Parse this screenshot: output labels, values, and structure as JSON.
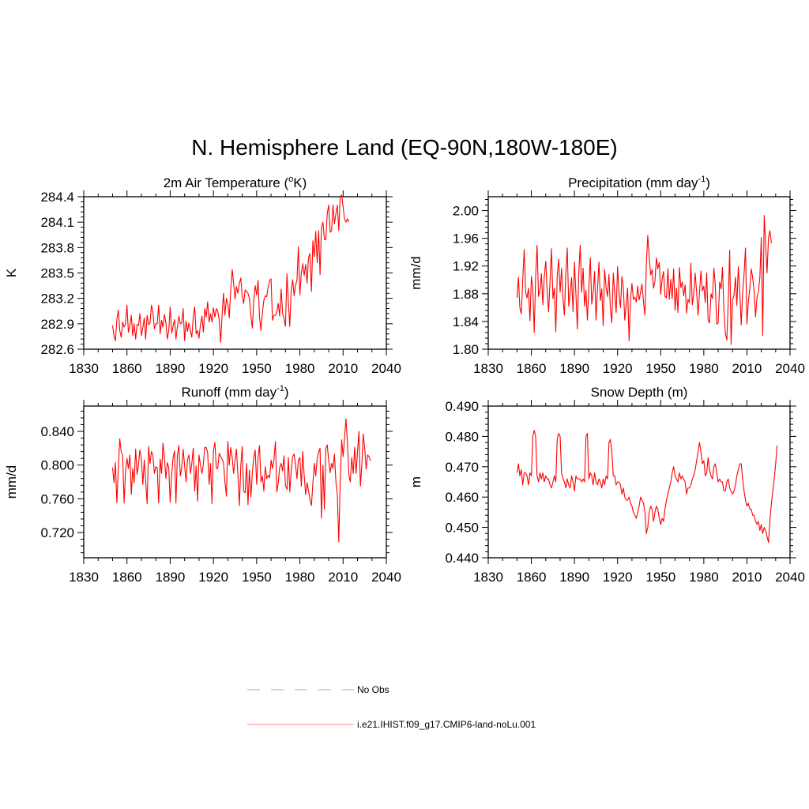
{
  "figure": {
    "title": "N. Hemisphere Land (EQ-90N,180W-180E)"
  },
  "chart_data": [
    {
      "type": "line",
      "title": "2m Air Temperature (",
      "title_sup": "o",
      "title_after": "K)",
      "ylabel": "K",
      "xlim": [
        1830,
        2040
      ],
      "ylim": [
        282.6,
        284.4
      ],
      "xticks": [
        "1830",
        "1860",
        "1890",
        "1920",
        "1950",
        "1980",
        "2010",
        "2040"
      ],
      "yticks": [
        "282.6",
        "282.9",
        "283.2",
        "283.5",
        "283.8",
        "284.1",
        "284.4"
      ],
      "series": [
        {
          "color": "#ff0000",
          "x_start": 1850,
          "values": [
            282.88,
            282.76,
            282.7,
            282.95,
            283.06,
            282.82,
            282.74,
            282.92,
            282.86,
            282.9,
            283.12,
            282.8,
            282.88,
            283.0,
            282.76,
            282.9,
            282.72,
            282.89,
            282.88,
            283.02,
            282.76,
            282.85,
            282.97,
            282.72,
            283.0,
            282.89,
            282.91,
            283.12,
            283.04,
            282.84,
            282.9,
            282.9,
            283.12,
            282.78,
            282.94,
            282.86,
            283.01,
            282.91,
            282.72,
            282.82,
            283.1,
            282.79,
            282.87,
            282.95,
            282.72,
            282.86,
            282.99,
            282.9,
            282.91,
            283.08,
            282.7,
            282.93,
            282.81,
            282.91,
            282.82,
            282.74,
            282.98,
            283.1,
            282.78,
            282.82,
            282.73,
            282.89,
            282.99,
            282.8,
            283.08,
            282.98,
            283.16,
            282.92,
            283.02,
            282.92,
            283.09,
            282.98,
            283.08,
            283.05,
            282.95,
            282.68,
            283.0,
            283.26,
            283.0,
            283.2,
            283.14,
            282.97,
            283.3,
            283.54,
            283.38,
            283.19,
            283.34,
            283.26,
            283.38,
            283.44,
            283.23,
            283.14,
            283.3,
            283.28,
            283.26,
            283.2,
            282.99,
            282.85,
            283.18,
            283.35,
            283.24,
            283.41,
            282.98,
            282.82,
            283.04,
            283.18,
            283.23,
            283.22,
            283.33,
            283.41,
            283.43,
            282.94,
            283.0,
            283.0,
            283.04,
            283.14,
            282.99,
            283.31,
            283.02,
            282.96,
            282.87,
            283.49,
            283.16,
            282.87,
            283.3,
            283.42,
            283.23,
            283.36,
            283.41,
            283.81,
            283.24,
            283.5,
            283.61,
            283.47,
            283.6,
            283.38,
            283.68,
            283.73,
            283.28,
            283.88,
            283.69,
            283.99,
            283.62,
            284.0,
            283.48,
            284.04,
            284.1,
            283.9,
            283.89,
            284.2,
            284.3,
            283.98,
            284.0,
            284.3,
            284.08,
            284.2,
            284.3,
            284.0,
            284.4,
            284.42,
            284.28,
            284.14,
            284.1,
            284.14,
            284.1
          ]
        }
      ]
    },
    {
      "type": "line",
      "title": "Precipitation (mm day",
      "title_sup": "-1",
      "title_after": ")",
      "ylabel": "mm/d",
      "xlim": [
        1830,
        2040
      ],
      "ylim": [
        1.8,
        2.02
      ],
      "xticks": [
        "1830",
        "1860",
        "1890",
        "1920",
        "1950",
        "1980",
        "2010",
        "2040"
      ],
      "yticks": [
        "1.80",
        "1.84",
        "1.88",
        "1.92",
        "1.96",
        "2.00"
      ],
      "series": [
        {
          "color": "#ff0000",
          "x_start": 1850,
          "values": [
            1.874,
            1.904,
            1.86,
            1.851,
            1.901,
            1.944,
            1.882,
            1.874,
            1.888,
            1.841,
            1.905,
            1.887,
            1.824,
            1.905,
            1.95,
            1.876,
            1.885,
            1.909,
            1.864,
            1.904,
            1.927,
            1.882,
            1.854,
            1.898,
            1.945,
            1.873,
            1.888,
            1.825,
            1.905,
            1.93,
            1.882,
            1.917,
            1.873,
            1.849,
            1.91,
            1.946,
            1.862,
            1.882,
            1.903,
            1.854,
            1.926,
            1.879,
            1.829,
            1.91,
            1.95,
            1.882,
            1.917,
            1.862,
            1.885,
            1.842,
            1.887,
            1.932,
            1.865,
            1.882,
            1.912,
            1.842,
            1.885,
            1.926,
            1.87,
            1.887,
            1.834,
            1.915,
            1.889,
            1.876,
            1.908,
            1.858,
            1.838,
            1.91,
            1.881,
            1.853,
            1.919,
            1.881,
            1.86,
            1.905,
            1.889,
            1.842,
            1.865,
            1.888,
            1.812,
            1.872,
            1.895,
            1.872,
            1.875,
            1.868,
            1.891,
            1.871,
            1.882,
            1.894,
            1.868,
            1.849,
            1.922,
            1.964,
            1.934,
            1.907,
            1.915,
            1.888,
            1.898,
            1.932,
            1.916,
            1.925,
            1.879,
            1.901,
            1.912,
            1.876,
            1.874,
            1.916,
            1.872,
            1.901,
            1.873,
            1.916,
            1.856,
            1.888,
            1.853,
            1.918,
            1.889,
            1.897,
            1.877,
            1.893,
            1.852,
            1.872,
            1.867,
            1.924,
            1.864,
            1.88,
            1.91,
            1.882,
            1.849,
            1.882,
            1.913,
            1.884,
            1.891,
            1.867,
            1.91,
            1.842,
            1.838,
            1.88,
            1.873,
            1.917,
            1.893,
            1.836,
            1.838,
            1.897,
            1.887,
            1.918,
            1.856,
            1.823,
            1.813,
            1.869,
            1.943,
            1.807,
            1.871,
            1.878,
            1.904,
            1.863,
            1.919,
            1.883,
            1.835,
            1.883,
            1.908,
            1.946,
            1.836,
            1.868,
            1.888,
            1.916,
            1.903,
            1.884,
            1.847,
            1.875,
            1.883,
            1.904,
            1.961,
            1.82,
            1.993,
            1.953,
            1.91,
            1.96,
            1.971,
            1.953
          ]
        }
      ]
    },
    {
      "type": "line",
      "title": "Runoff (mm day",
      "title_sup": "-1",
      "title_after": ")",
      "ylabel": "mm/d",
      "xlim": [
        1830,
        2040
      ],
      "ylim": [
        0.69,
        0.87
      ],
      "xticks": [
        "1830",
        "1860",
        "1890",
        "1920",
        "1950",
        "1980",
        "2010",
        "2040"
      ],
      "yticks": [
        "0.720",
        "0.760",
        "0.800",
        "0.840"
      ],
      "series": [
        {
          "color": "#ff0000",
          "x_start": 1850,
          "values": [
            0.797,
            0.779,
            0.803,
            0.755,
            0.797,
            0.831,
            0.816,
            0.812,
            0.755,
            0.793,
            0.808,
            0.796,
            0.812,
            0.765,
            0.796,
            0.779,
            0.819,
            0.789,
            0.801,
            0.818,
            0.807,
            0.777,
            0.806,
            0.781,
            0.754,
            0.822,
            0.802,
            0.816,
            0.812,
            0.79,
            0.798,
            0.797,
            0.755,
            0.807,
            0.79,
            0.826,
            0.809,
            0.784,
            0.803,
            0.797,
            0.756,
            0.789,
            0.809,
            0.817,
            0.755,
            0.811,
            0.823,
            0.787,
            0.797,
            0.819,
            0.799,
            0.78,
            0.806,
            0.812,
            0.79,
            0.802,
            0.82,
            0.769,
            0.799,
            0.757,
            0.812,
            0.8,
            0.79,
            0.801,
            0.821,
            0.821,
            0.815,
            0.777,
            0.802,
            0.754,
            0.816,
            0.827,
            0.796,
            0.796,
            0.814,
            0.81,
            0.807,
            0.803,
            0.78,
            0.763,
            0.828,
            0.8,
            0.821,
            0.809,
            0.79,
            0.806,
            0.819,
            0.789,
            0.752,
            0.799,
            0.822,
            0.769,
            0.767,
            0.802,
            0.753,
            0.794,
            0.762,
            0.791,
            0.809,
            0.818,
            0.777,
            0.81,
            0.823,
            0.78,
            0.787,
            0.769,
            0.798,
            0.784,
            0.788,
            0.785,
            0.806,
            0.796,
            0.806,
            0.828,
            0.768,
            0.779,
            0.797,
            0.802,
            0.793,
            0.811,
            0.776,
            0.771,
            0.809,
            0.768,
            0.793,
            0.81,
            0.813,
            0.8,
            0.784,
            0.806,
            0.809,
            0.775,
            0.816,
            0.788,
            0.765,
            0.779,
            0.77,
            0.759,
            0.752,
            0.778,
            0.802,
            0.787,
            0.808,
            0.815,
            0.82,
            0.737,
            0.8,
            0.748,
            0.82,
            0.824,
            0.806,
            0.791,
            0.802,
            0.796,
            0.813,
            0.78,
            0.765,
            0.709,
            0.778,
            0.83,
            0.81,
            0.832,
            0.855,
            0.826,
            0.788,
            0.78,
            0.809,
            0.79,
            0.821,
            0.79,
            0.815,
            0.84,
            0.775,
            0.8,
            0.837,
            0.82,
            0.795,
            0.812,
            0.81,
            0.805
          ]
        }
      ]
    },
    {
      "type": "line",
      "title": "Snow Depth (m)",
      "title_sup": "",
      "title_after": "",
      "ylabel": "m",
      "xlim": [
        1830,
        2040
      ],
      "ylim": [
        0.44,
        0.49
      ],
      "xticks": [
        "1830",
        "1860",
        "1890",
        "1920",
        "1950",
        "1980",
        "2010",
        "2040"
      ],
      "yticks": [
        "0.440",
        "0.450",
        "0.460",
        "0.470",
        "0.480",
        "0.490"
      ],
      "series": [
        {
          "color": "#ff0000",
          "x_start": 1850,
          "values": [
            0.468,
            0.471,
            0.467,
            0.469,
            0.464,
            0.468,
            0.468,
            0.467,
            0.464,
            0.468,
            0.467,
            0.48,
            0.482,
            0.48,
            0.467,
            0.465,
            0.468,
            0.466,
            0.468,
            0.465,
            0.467,
            0.466,
            0.466,
            0.464,
            0.463,
            0.465,
            0.467,
            0.465,
            0.479,
            0.481,
            0.48,
            0.468,
            0.466,
            0.465,
            0.463,
            0.466,
            0.464,
            0.463,
            0.467,
            0.465,
            0.462,
            0.467,
            0.466,
            0.466,
            0.466,
            0.465,
            0.466,
            0.465,
            0.48,
            0.481,
            0.466,
            0.468,
            0.467,
            0.464,
            0.468,
            0.465,
            0.464,
            0.466,
            0.465,
            0.463,
            0.466,
            0.464,
            0.467,
            0.466,
            0.478,
            0.479,
            0.475,
            0.467,
            0.467,
            0.464,
            0.465,
            0.465,
            0.464,
            0.461,
            0.463,
            0.46,
            0.459,
            0.459,
            0.46,
            0.458,
            0.457,
            0.455,
            0.454,
            0.453,
            0.455,
            0.457,
            0.46,
            0.459,
            0.458,
            0.455,
            0.448,
            0.45,
            0.455,
            0.457,
            0.456,
            0.452,
            0.455,
            0.457,
            0.456,
            0.453,
            0.451,
            0.453,
            0.452,
            0.456,
            0.459,
            0.461,
            0.463,
            0.465,
            0.468,
            0.47,
            0.467,
            0.466,
            0.465,
            0.468,
            0.466,
            0.467,
            0.466,
            0.465,
            0.461,
            0.463,
            0.463,
            0.464,
            0.466,
            0.467,
            0.469,
            0.472,
            0.475,
            0.478,
            0.475,
            0.471,
            0.472,
            0.467,
            0.468,
            0.473,
            0.469,
            0.467,
            0.466,
            0.47,
            0.471,
            0.468,
            0.465,
            0.466,
            0.465,
            0.465,
            0.462,
            0.462,
            0.465,
            0.466,
            0.463,
            0.462,
            0.461,
            0.462,
            0.464,
            0.467,
            0.469,
            0.471,
            0.471,
            0.466,
            0.462,
            0.459,
            0.457,
            0.458,
            0.456,
            0.456,
            0.454,
            0.454,
            0.452,
            0.451,
            0.452,
            0.449,
            0.451,
            0.448,
            0.45,
            0.449,
            0.447,
            0.445,
            0.452,
            0.458,
            0.462,
            0.466,
            0.471,
            0.477
          ]
        }
      ]
    }
  ],
  "legend": [
    {
      "label": "No Obs",
      "color": "#b0b4f0",
      "style": "dashed"
    },
    {
      "label": "i.e21.IHIST.f09_g17.CMIP6-land-noLu.001",
      "color": "#ff9a9a",
      "style": "solid"
    }
  ]
}
